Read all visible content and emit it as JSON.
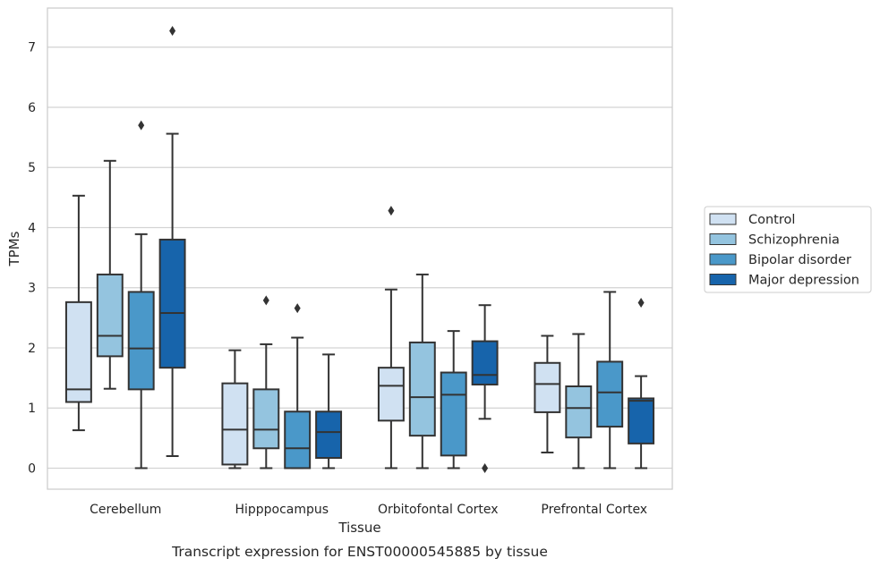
{
  "chart_data": {
    "type": "box",
    "title": "",
    "caption": "Transcript expression for ENST00000545885 by tissue",
    "xlabel": "Tissue",
    "ylabel": "TPMs",
    "ylim": [
      -0.35,
      7.65
    ],
    "yticks": [
      "0",
      "1",
      "2",
      "3",
      "4",
      "5",
      "6",
      "7"
    ],
    "grid": "horizontal",
    "legend_position": "right",
    "categories": [
      "Cerebellum",
      "Hipppocampus",
      "Orbitofontal Cortex",
      "Prefrontal Cortex"
    ],
    "series": [
      {
        "name": "Control",
        "color": "#d0e1f2",
        "boxes": [
          {
            "whislo": 0.63,
            "q1": 1.1,
            "med": 1.31,
            "q3": 2.76,
            "whishi": 4.53,
            "fliers": []
          },
          {
            "whislo": 0.0,
            "q1": 0.06,
            "med": 0.64,
            "q3": 1.41,
            "whishi": 1.96,
            "fliers": []
          },
          {
            "whislo": 0.0,
            "q1": 0.79,
            "med": 1.37,
            "q3": 1.67,
            "whishi": 2.97,
            "fliers": [
              4.28
            ]
          },
          {
            "whislo": 0.26,
            "q1": 0.93,
            "med": 1.4,
            "q3": 1.75,
            "whishi": 2.2,
            "fliers": []
          }
        ]
      },
      {
        "name": "Schizophrenia",
        "color": "#94c4df",
        "boxes": [
          {
            "whislo": 1.32,
            "q1": 1.86,
            "med": 2.2,
            "q3": 3.22,
            "whishi": 5.11,
            "fliers": []
          },
          {
            "whislo": 0.0,
            "q1": 0.33,
            "med": 0.64,
            "q3": 1.31,
            "whishi": 2.06,
            "fliers": [
              2.79
            ]
          },
          {
            "whislo": 0.0,
            "q1": 0.54,
            "med": 1.18,
            "q3": 2.09,
            "whishi": 3.22,
            "fliers": []
          },
          {
            "whislo": 0.0,
            "q1": 0.51,
            "med": 1.0,
            "q3": 1.36,
            "whishi": 2.23,
            "fliers": []
          }
        ]
      },
      {
        "name": "Bipolar disorder",
        "color": "#4a98c9",
        "boxes": [
          {
            "whislo": 0.0,
            "q1": 1.31,
            "med": 1.99,
            "q3": 2.93,
            "whishi": 3.89,
            "fliers": [
              5.7
            ]
          },
          {
            "whislo": 0.0,
            "q1": 0.0,
            "med": 0.33,
            "q3": 0.94,
            "whishi": 2.17,
            "fliers": [
              2.66
            ]
          },
          {
            "whislo": 0.0,
            "q1": 0.21,
            "med": 1.22,
            "q3": 1.59,
            "whishi": 2.28,
            "fliers": []
          },
          {
            "whislo": 0.0,
            "q1": 0.69,
            "med": 1.26,
            "q3": 1.77,
            "whishi": 2.93,
            "fliers": []
          }
        ]
      },
      {
        "name": "Major depression",
        "color": "#1764ab",
        "boxes": [
          {
            "whislo": 0.2,
            "q1": 1.67,
            "med": 2.58,
            "q3": 3.8,
            "whishi": 5.56,
            "fliers": [
              7.27
            ]
          },
          {
            "whislo": 0.0,
            "q1": 0.17,
            "med": 0.6,
            "q3": 0.94,
            "whishi": 1.89,
            "fliers": []
          },
          {
            "whislo": 0.82,
            "q1": 1.39,
            "med": 1.55,
            "q3": 2.11,
            "whishi": 2.71,
            "fliers": [
              0.0
            ]
          },
          {
            "whislo": 0.0,
            "q1": 0.41,
            "med": 1.12,
            "q3": 1.16,
            "whishi": 1.53,
            "fliers": [
              2.75
            ]
          }
        ]
      }
    ]
  },
  "colors": {
    "background": "#ffffff",
    "grid": "#d3d3d3",
    "box_edge": "#333333",
    "frame": "#cccccc"
  }
}
